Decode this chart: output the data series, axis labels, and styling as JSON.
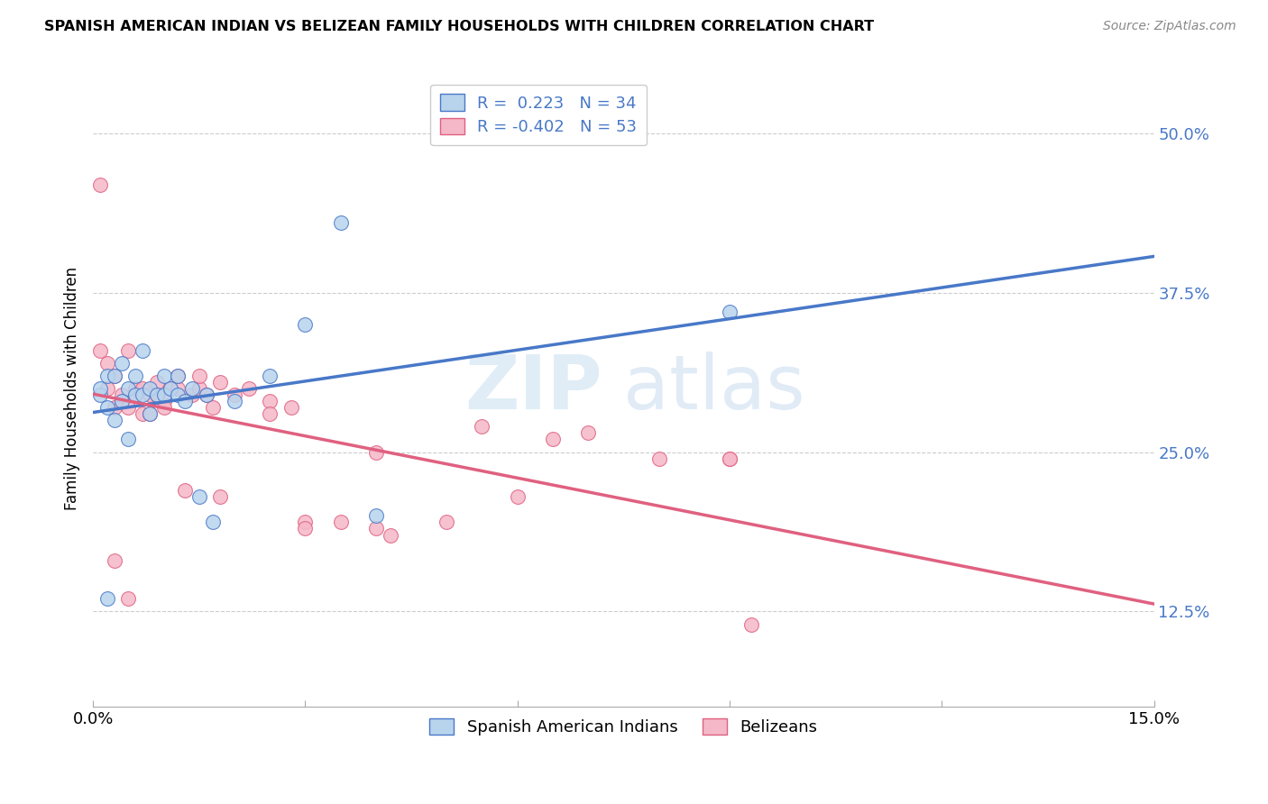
{
  "title": "SPANISH AMERICAN INDIAN VS BELIZEAN FAMILY HOUSEHOLDS WITH CHILDREN CORRELATION CHART",
  "source": "Source: ZipAtlas.com",
  "ylabel": "Family Households with Children",
  "xlim": [
    0.0,
    0.15
  ],
  "ylim": [
    0.05,
    0.55
  ],
  "yticks": [
    0.125,
    0.25,
    0.375,
    0.5
  ],
  "ytick_labels": [
    "12.5%",
    "25.0%",
    "37.5%",
    "50.0%"
  ],
  "xticks": [
    0.0,
    0.03,
    0.06,
    0.09,
    0.12,
    0.15
  ],
  "xtick_labels": [
    "0.0%",
    "",
    "",
    "",
    "",
    "15.0%"
  ],
  "blue_R": 0.223,
  "blue_N": 34,
  "pink_R": -0.402,
  "pink_N": 53,
  "blue_fill": "#b8d4ed",
  "pink_fill": "#f5b8c8",
  "blue_edge": "#4878c8",
  "pink_edge": "#e06080",
  "blue_line": "#4878c8",
  "pink_line": "#e06080",
  "legend_label_blue": "Spanish American Indians",
  "legend_label_pink": "Belizeans",
  "watermark_zip": "ZIP",
  "watermark_atlas": "atlas",
  "blue_scatter_x": [
    0.001,
    0.001,
    0.002,
    0.002,
    0.003,
    0.003,
    0.004,
    0.004,
    0.005,
    0.005,
    0.006,
    0.006,
    0.007,
    0.007,
    0.008,
    0.008,
    0.009,
    0.01,
    0.01,
    0.011,
    0.012,
    0.012,
    0.013,
    0.014,
    0.015,
    0.016,
    0.017,
    0.02,
    0.025,
    0.03,
    0.035,
    0.04,
    0.09,
    0.002
  ],
  "blue_scatter_y": [
    0.295,
    0.3,
    0.31,
    0.285,
    0.31,
    0.275,
    0.32,
    0.29,
    0.3,
    0.26,
    0.31,
    0.295,
    0.33,
    0.295,
    0.3,
    0.28,
    0.295,
    0.31,
    0.295,
    0.3,
    0.31,
    0.295,
    0.29,
    0.3,
    0.215,
    0.295,
    0.195,
    0.29,
    0.31,
    0.35,
    0.43,
    0.2,
    0.36,
    0.135
  ],
  "pink_scatter_x": [
    0.001,
    0.001,
    0.002,
    0.002,
    0.003,
    0.003,
    0.004,
    0.004,
    0.005,
    0.005,
    0.006,
    0.006,
    0.007,
    0.007,
    0.008,
    0.008,
    0.009,
    0.01,
    0.01,
    0.011,
    0.012,
    0.013,
    0.014,
    0.015,
    0.016,
    0.017,
    0.018,
    0.02,
    0.022,
    0.025,
    0.028,
    0.03,
    0.035,
    0.04,
    0.042,
    0.05,
    0.06,
    0.07,
    0.08,
    0.09,
    0.003,
    0.005,
    0.009,
    0.012,
    0.015,
    0.018,
    0.025,
    0.03,
    0.04,
    0.055,
    0.065,
    0.09,
    0.093
  ],
  "pink_scatter_y": [
    0.46,
    0.33,
    0.32,
    0.3,
    0.285,
    0.31,
    0.29,
    0.295,
    0.285,
    0.33,
    0.3,
    0.295,
    0.3,
    0.28,
    0.295,
    0.28,
    0.305,
    0.29,
    0.285,
    0.3,
    0.3,
    0.22,
    0.295,
    0.3,
    0.295,
    0.285,
    0.215,
    0.295,
    0.3,
    0.29,
    0.285,
    0.195,
    0.195,
    0.25,
    0.185,
    0.195,
    0.215,
    0.265,
    0.245,
    0.245,
    0.165,
    0.135,
    0.295,
    0.31,
    0.31,
    0.305,
    0.28,
    0.19,
    0.19,
    0.27,
    0.26,
    0.245,
    0.115
  ]
}
